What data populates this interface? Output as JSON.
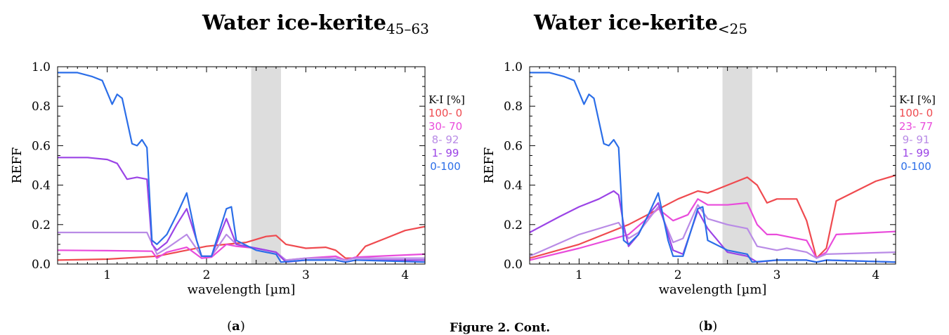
{
  "colors": {
    "ki_100_0": "#ef4a4f",
    "ki_mid1": "#e94bdb",
    "ki_mid2": "#b98be6",
    "ki_1_99": "#9b44e6",
    "ki_0_100": "#2b6ee8",
    "band_shading": "#dddddd"
  },
  "figure_caption": {
    "text": "Figure 2. Cont."
  },
  "chart_data": [
    {
      "type": "line",
      "title_main": "Water ice-kerite",
      "title_sub": "45–63",
      "caption_letter": "a",
      "xlabel": "wavelength [µm]",
      "ylabel": "REFF",
      "xlim": [
        0.5,
        4.2
      ],
      "ylim": [
        0.0,
        1.0
      ],
      "xticks": [
        1,
        2,
        3,
        4
      ],
      "yticks": [
        "0.0",
        "0.2",
        "0.4",
        "0.6",
        "0.8",
        "1.0"
      ],
      "shaded_band": [
        2.45,
        2.75
      ],
      "legend_title": "K-I [%]",
      "legend_position": "right, outside plot",
      "series": [
        {
          "name": "100- 0",
          "color": "#ef4a4f",
          "x": [
            0.5,
            1.0,
            1.5,
            1.8,
            2.0,
            2.2,
            2.4,
            2.6,
            2.7,
            2.8,
            3.0,
            3.2,
            3.3,
            3.4,
            3.5,
            3.6,
            3.8,
            4.0,
            4.2
          ],
          "y": [
            0.02,
            0.025,
            0.04,
            0.07,
            0.09,
            0.1,
            0.11,
            0.14,
            0.145,
            0.1,
            0.08,
            0.085,
            0.07,
            0.03,
            0.03,
            0.09,
            0.13,
            0.17,
            0.19
          ]
        },
        {
          "name": "30- 70",
          "color": "#e94bdb",
          "x": [
            0.5,
            1.0,
            1.45,
            1.5,
            1.6,
            1.8,
            1.95,
            2.05,
            2.2,
            2.3,
            2.5,
            2.7,
            2.8,
            3.0,
            3.3,
            3.4,
            3.5,
            4.2
          ],
          "y": [
            0.07,
            0.068,
            0.065,
            0.03,
            0.06,
            0.085,
            0.03,
            0.035,
            0.1,
            0.09,
            0.08,
            0.06,
            0.02,
            0.03,
            0.04,
            0.02,
            0.035,
            0.05
          ]
        },
        {
          "name": "8- 92",
          "color": "#b98be6",
          "x": [
            0.5,
            1.0,
            1.4,
            1.5,
            1.6,
            1.8,
            1.95,
            2.05,
            2.2,
            2.3,
            2.5,
            2.7,
            2.8,
            3.0,
            3.3,
            3.4,
            3.5,
            4.2
          ],
          "y": [
            0.16,
            0.16,
            0.16,
            0.05,
            0.08,
            0.15,
            0.04,
            0.04,
            0.15,
            0.1,
            0.08,
            0.06,
            0.02,
            0.03,
            0.03,
            0.02,
            0.03,
            0.03
          ]
        },
        {
          "name": "1- 99",
          "color": "#9b44e6",
          "x": [
            0.5,
            0.8,
            1.0,
            1.1,
            1.2,
            1.3,
            1.4,
            1.45,
            1.5,
            1.6,
            1.7,
            1.8,
            1.95,
            2.05,
            2.2,
            2.3,
            2.5,
            2.7,
            2.8,
            3.0,
            3.3,
            3.4,
            3.5,
            4.2
          ],
          "y": [
            0.54,
            0.54,
            0.53,
            0.51,
            0.43,
            0.44,
            0.43,
            0.1,
            0.07,
            0.11,
            0.2,
            0.28,
            0.04,
            0.04,
            0.23,
            0.1,
            0.08,
            0.06,
            0.01,
            0.02,
            0.02,
            0.01,
            0.02,
            0.02
          ]
        },
        {
          "name": "0-100",
          "color": "#2b6ee8",
          "x": [
            0.5,
            0.7,
            0.85,
            0.95,
            1.05,
            1.1,
            1.15,
            1.25,
            1.3,
            1.35,
            1.4,
            1.45,
            1.5,
            1.6,
            1.7,
            1.8,
            1.9,
            1.95,
            2.05,
            2.2,
            2.25,
            2.3,
            2.5,
            2.7,
            2.75,
            3.0,
            3.3,
            3.4,
            3.5,
            4.2
          ],
          "y": [
            0.97,
            0.97,
            0.95,
            0.93,
            0.81,
            0.86,
            0.84,
            0.61,
            0.6,
            0.63,
            0.59,
            0.12,
            0.1,
            0.15,
            0.25,
            0.36,
            0.12,
            0.04,
            0.04,
            0.28,
            0.29,
            0.12,
            0.07,
            0.05,
            0.01,
            0.02,
            0.02,
            0.01,
            0.02,
            0.01
          ]
        }
      ]
    },
    {
      "type": "line",
      "title_main": "Water ice-kerite",
      "title_sub": "<25",
      "caption_letter": "b",
      "xlabel": "wavelength [µm]",
      "ylabel": "REFF",
      "xlim": [
        0.5,
        4.2
      ],
      "ylim": [
        0.0,
        1.0
      ],
      "xticks": [
        1,
        2,
        3,
        4
      ],
      "yticks": [
        "0.0",
        "0.2",
        "0.4",
        "0.6",
        "0.8",
        "1.0"
      ],
      "shaded_band": [
        2.45,
        2.75
      ],
      "legend_title": "K-I [%]",
      "legend_position": "right, outside plot",
      "series": [
        {
          "name": "100- 0",
          "color": "#ef4a4f",
          "x": [
            0.5,
            1.0,
            1.5,
            2.0,
            2.2,
            2.3,
            2.5,
            2.7,
            2.8,
            2.9,
            3.0,
            3.2,
            3.3,
            3.4,
            3.5,
            3.6,
            3.8,
            4.0,
            4.2
          ],
          "y": [
            0.03,
            0.1,
            0.2,
            0.33,
            0.37,
            0.36,
            0.4,
            0.44,
            0.4,
            0.31,
            0.33,
            0.33,
            0.22,
            0.03,
            0.08,
            0.32,
            0.37,
            0.42,
            0.45
          ]
        },
        {
          "name": "23- 77",
          "color": "#e94bdb",
          "x": [
            0.5,
            1.0,
            1.5,
            1.8,
            1.95,
            2.1,
            2.2,
            2.3,
            2.5,
            2.7,
            2.8,
            2.9,
            3.0,
            3.3,
            3.4,
            3.5,
            3.6,
            4.0,
            4.2
          ],
          "y": [
            0.02,
            0.08,
            0.15,
            0.28,
            0.22,
            0.25,
            0.33,
            0.3,
            0.3,
            0.31,
            0.2,
            0.15,
            0.15,
            0.12,
            0.03,
            0.06,
            0.15,
            0.16,
            0.165
          ]
        },
        {
          "name": "9- 91",
          "color": "#b98be6",
          "x": [
            0.5,
            1.0,
            1.4,
            1.5,
            1.6,
            1.8,
            1.95,
            2.05,
            2.2,
            2.3,
            2.5,
            2.7,
            2.8,
            3.0,
            3.1,
            3.3,
            3.4,
            3.5,
            4.2
          ],
          "y": [
            0.04,
            0.15,
            0.21,
            0.13,
            0.16,
            0.29,
            0.11,
            0.13,
            0.3,
            0.23,
            0.2,
            0.18,
            0.09,
            0.07,
            0.08,
            0.06,
            0.03,
            0.05,
            0.06
          ]
        },
        {
          "name": "1- 99",
          "color": "#9b44e6",
          "x": [
            0.5,
            0.8,
            1.0,
            1.2,
            1.35,
            1.4,
            1.45,
            1.5,
            1.6,
            1.7,
            1.8,
            1.95,
            2.05,
            2.2,
            2.3,
            2.5,
            2.7,
            2.8,
            3.0,
            3.3,
            3.4,
            3.5,
            4.2
          ],
          "y": [
            0.16,
            0.24,
            0.29,
            0.33,
            0.37,
            0.35,
            0.2,
            0.09,
            0.15,
            0.25,
            0.31,
            0.07,
            0.05,
            0.27,
            0.18,
            0.06,
            0.04,
            0.01,
            0.02,
            0.02,
            0.01,
            0.02,
            0.01
          ]
        },
        {
          "name": "0-100",
          "color": "#2b6ee8",
          "x": [
            0.5,
            0.7,
            0.85,
            0.95,
            1.05,
            1.1,
            1.15,
            1.25,
            1.3,
            1.35,
            1.4,
            1.45,
            1.5,
            1.6,
            1.7,
            1.8,
            1.9,
            1.95,
            2.05,
            2.2,
            2.25,
            2.3,
            2.5,
            2.7,
            2.75,
            3.0,
            3.3,
            3.4,
            3.5,
            4.2
          ],
          "y": [
            0.97,
            0.97,
            0.95,
            0.93,
            0.81,
            0.86,
            0.84,
            0.61,
            0.6,
            0.63,
            0.59,
            0.12,
            0.1,
            0.15,
            0.25,
            0.36,
            0.12,
            0.04,
            0.04,
            0.28,
            0.29,
            0.12,
            0.07,
            0.05,
            0.01,
            0.02,
            0.02,
            0.01,
            0.02,
            0.01
          ]
        }
      ]
    }
  ]
}
